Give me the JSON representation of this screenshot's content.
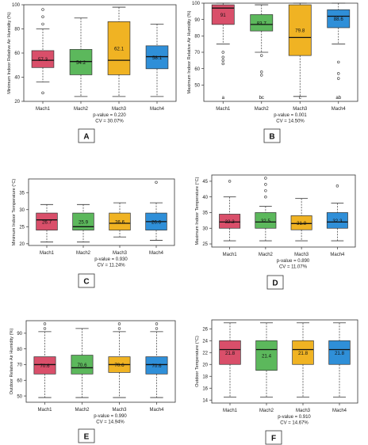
{
  "chart_data": [
    {
      "type": "box",
      "panel_letter": "A",
      "ylabel": "Minimum Indoor Relative Air Humidity (%)",
      "ylim": [
        20,
        100
      ],
      "yticks": [
        20,
        40,
        60,
        80,
        100
      ],
      "categories": [
        "Mach1",
        "Mach2",
        "Mach3",
        "Mach4"
      ],
      "colors": [
        "#d94f6a",
        "#5cb85c",
        "#f0b323",
        "#2f8fd8"
      ],
      "boxes": [
        {
          "whisker_low": 36,
          "q1": 48,
          "median": 54,
          "q3": 62,
          "whisker_high": 80,
          "mean_label": "57.3",
          "outliers": [
            27,
            84,
            90,
            96
          ]
        },
        {
          "whisker_low": 24,
          "q1": 42,
          "median": 53,
          "q3": 63,
          "whisker_high": 89,
          "mean_label": "54.2",
          "outliers": []
        },
        {
          "whisker_low": 24,
          "q1": 42,
          "median": 54,
          "q3": 86,
          "whisker_high": 98,
          "mean_label": "62.1",
          "outliers": []
        },
        {
          "whisker_low": 24,
          "q1": 47,
          "median": 57,
          "q3": 66,
          "whisker_high": 84,
          "mean_label": "58.1",
          "outliers": []
        }
      ],
      "group_letters": [],
      "stats": [
        "p-value = 0.220",
        "CV = 30.07%"
      ]
    },
    {
      "type": "box",
      "panel_letter": "B",
      "ylabel": "Maximum Indoor Relative Air Humidity (%)",
      "ylim": [
        40,
        100
      ],
      "yticks": [
        50,
        60,
        70,
        80,
        90,
        100
      ],
      "categories": [
        "Mach1",
        "Mach2",
        "Mach3",
        "Mach4"
      ],
      "colors": [
        "#d94f6a",
        "#5cb85c",
        "#f0b323",
        "#2f8fd8"
      ],
      "boxes": [
        {
          "whisker_low": 75,
          "q1": 87,
          "median": 97,
          "q3": 99,
          "whisker_high": 100,
          "mean_label": "91",
          "outliers": [
            63,
            65,
            67,
            70
          ]
        },
        {
          "whisker_low": 70,
          "q1": 83,
          "median": 87,
          "q3": 93,
          "whisker_high": 99,
          "mean_label": "83.7",
          "outliers": [
            56,
            58,
            68
          ]
        },
        {
          "whisker_low": 43,
          "q1": 68,
          "median": 79,
          "q3": 99,
          "whisker_high": 100,
          "mean_label": "79.8",
          "outliers": []
        },
        {
          "whisker_low": 75,
          "q1": 85,
          "median": 92,
          "q3": 96,
          "whisker_high": 100,
          "mean_label": "88.6",
          "outliers": [
            54,
            57,
            64
          ]
        }
      ],
      "group_letters": [
        "a",
        "bc",
        "c",
        "ab"
      ],
      "stats": [
        "p-value = 0.001",
        "CV = 14.50%"
      ]
    },
    {
      "type": "box",
      "panel_letter": "C",
      "ylabel": "Minimum Indoor Temperature (°C)",
      "ylim": [
        19.5,
        39
      ],
      "yticks": [
        20,
        25,
        30,
        35
      ],
      "categories": [
        "Mach1",
        "Mach2",
        "Mach3",
        "Mach4"
      ],
      "colors": [
        "#d94f6a",
        "#5cb85c",
        "#f0b323",
        "#2f8fd8"
      ],
      "boxes": [
        {
          "whisker_low": 20.5,
          "q1": 24,
          "median": 27,
          "q3": 29,
          "whisker_high": 31.5,
          "mean_label": "26.7",
          "outliers": []
        },
        {
          "whisker_low": 20.5,
          "q1": 24,
          "median": 25,
          "q3": 29,
          "whisker_high": 31.5,
          "mean_label": "25.9",
          "outliers": []
        },
        {
          "whisker_low": 22,
          "q1": 24,
          "median": 26,
          "q3": 29,
          "whisker_high": 32,
          "mean_label": "26.6",
          "outliers": []
        },
        {
          "whisker_low": 21,
          "q1": 24,
          "median": 26.5,
          "q3": 29,
          "whisker_high": 32,
          "mean_label": "26.6",
          "outliers": [
            38
          ]
        }
      ],
      "group_letters": [],
      "stats": [
        "p-value = 0.930",
        "CV = 11.24%"
      ]
    },
    {
      "type": "box",
      "panel_letter": "D",
      "ylabel": "Maximum Indoor Temperature (°C)",
      "ylim": [
        24,
        47
      ],
      "yticks": [
        25,
        30,
        35,
        40,
        45
      ],
      "categories": [
        "Mach1",
        "Mach2",
        "Mach3",
        "Mach4"
      ],
      "colors": [
        "#d94f6a",
        "#5cb85c",
        "#f0b323",
        "#2f8fd8"
      ],
      "boxes": [
        {
          "whisker_low": 26,
          "q1": 30,
          "median": 32,
          "q3": 34.5,
          "whisker_high": 40,
          "mean_label": "32.3",
          "outliers": [
            45
          ]
        },
        {
          "whisker_low": 26,
          "q1": 30,
          "median": 32,
          "q3": 35,
          "whisker_high": 37,
          "mean_label": "32.5",
          "outliers": [
            40,
            42,
            44,
            46
          ]
        },
        {
          "whisker_low": 26,
          "q1": 29.5,
          "median": 31.5,
          "q3": 34,
          "whisker_high": 39.5,
          "mean_label": "31.8",
          "outliers": []
        },
        {
          "whisker_low": 26,
          "q1": 30,
          "median": 32,
          "q3": 35,
          "whisker_high": 38,
          "mean_label": "32.3",
          "outliers": [
            43.5
          ]
        }
      ],
      "group_letters": [],
      "stats": [
        "p-value = 0.890",
        "CV = 11.07%"
      ]
    },
    {
      "type": "box",
      "panel_letter": "E",
      "ylabel": "Outdoor Relative Air Humidity (%)",
      "ylim": [
        46,
        98
      ],
      "yticks": [
        50,
        60,
        70,
        80,
        90
      ],
      "categories": [
        "Mach1",
        "Mach2",
        "Mach3",
        "Mach4"
      ],
      "colors": [
        "#d94f6a",
        "#5cb85c",
        "#f0b323",
        "#2f8fd8"
      ],
      "boxes": [
        {
          "whisker_low": 49,
          "q1": 64,
          "median": 70,
          "q3": 75,
          "whisker_high": 91,
          "mean_label": "70.6",
          "outliers": [
            93,
            96
          ]
        },
        {
          "whisker_low": 49,
          "q1": 64,
          "median": 68,
          "q3": 76,
          "whisker_high": 93,
          "mean_label": "70.6",
          "outliers": []
        },
        {
          "whisker_low": 49,
          "q1": 65,
          "median": 70,
          "q3": 75,
          "whisker_high": 91,
          "mean_label": "70.6",
          "outliers": [
            93,
            96
          ]
        },
        {
          "whisker_low": 49,
          "q1": 64,
          "median": 70,
          "q3": 75,
          "whisker_high": 91,
          "mean_label": "70.6",
          "outliers": [
            93,
            96
          ]
        }
      ],
      "group_letters": [],
      "stats": [
        "p-value = 0.990",
        "CV = 14.94%"
      ]
    },
    {
      "type": "box",
      "panel_letter": "F",
      "ylabel": "Outdoor Temperature (°C)",
      "ylim": [
        13.5,
        27.5
      ],
      "yticks": [
        14,
        16,
        18,
        20,
        22,
        24,
        26
      ],
      "categories": [
        "Mach1",
        "Mach2",
        "Mach3",
        "Mach4"
      ],
      "colors": [
        "#d94f6a",
        "#5cb85c",
        "#f0b323",
        "#2f8fd8"
      ],
      "boxes": [
        {
          "whisker_low": 14.5,
          "q1": 20,
          "median": 22.5,
          "q3": 24,
          "whisker_high": 27,
          "mean_label": "21.8",
          "outliers": []
        },
        {
          "whisker_low": 14.5,
          "q1": 19,
          "median": 22.5,
          "q3": 24,
          "whisker_high": 27,
          "mean_label": "21.4",
          "outliers": []
        },
        {
          "whisker_low": 14.5,
          "q1": 20,
          "median": 22.5,
          "q3": 24,
          "whisker_high": 27,
          "mean_label": "21.8",
          "outliers": []
        },
        {
          "whisker_low": 14.5,
          "q1": 20,
          "median": 22.5,
          "q3": 24,
          "whisker_high": 27,
          "mean_label": "21.8",
          "outliers": []
        }
      ],
      "group_letters": [],
      "stats": [
        "p-value = 0.910",
        "CV = 14.67%"
      ]
    }
  ]
}
